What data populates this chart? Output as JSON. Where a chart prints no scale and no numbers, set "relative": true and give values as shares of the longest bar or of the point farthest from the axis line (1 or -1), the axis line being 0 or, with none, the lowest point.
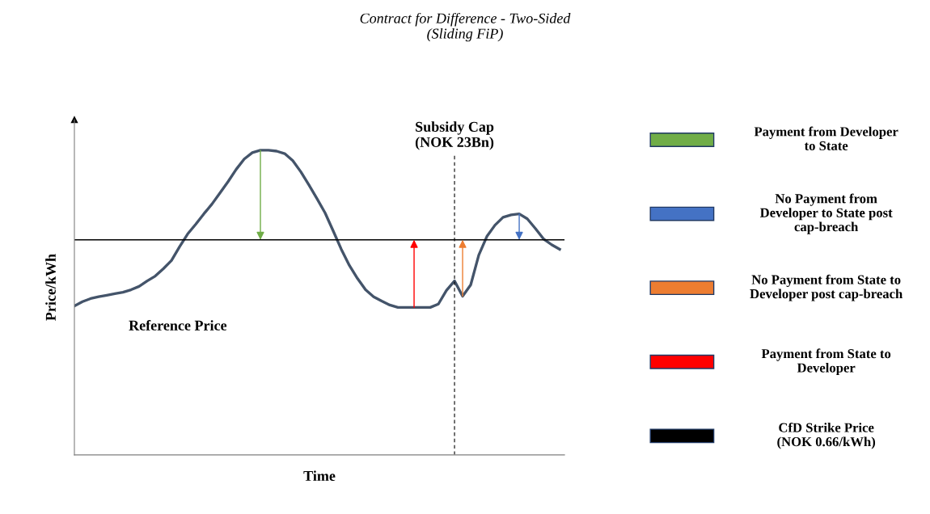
{
  "chart_data": [
    {
      "type": "line",
      "title": "Contract for Difference - Two-Sided\n(Sliding FiP)",
      "xlabel": "Time",
      "ylabel": "Price/kWh",
      "relative": true,
      "tick_labels": false,
      "categories": [
        null,
        null,
        null,
        null,
        null,
        null,
        null,
        null,
        null,
        null,
        null,
        null,
        null,
        null,
        null,
        null,
        null,
        null,
        null,
        null,
        null,
        null,
        null,
        null,
        null,
        null,
        null,
        null,
        null,
        null,
        null,
        null,
        null,
        null,
        null,
        null,
        null,
        null,
        null,
        null,
        null,
        null,
        null,
        null,
        null,
        null,
        null,
        null,
        null,
        null,
        null,
        null,
        null,
        null,
        null,
        null,
        null,
        null,
        null,
        null,
        null
      ],
      "series": [
        {
          "name": "Reference Price",
          "color": "#44546a",
          "values": [
            0.489,
            0.503,
            0.513,
            0.519,
            0.524,
            0.529,
            0.534,
            0.542,
            0.553,
            0.571,
            0.587,
            0.611,
            0.638,
            0.683,
            0.725,
            0.757,
            0.791,
            0.823,
            0.86,
            0.897,
            0.937,
            0.971,
            0.992,
            1,
            1,
            0.997,
            0.989,
            0.966,
            0.929,
            0.886,
            0.841,
            0.794,
            0.735,
            0.675,
            0.622,
            0.579,
            0.542,
            0.519,
            0.505,
            0.492,
            0.484,
            0.484,
            0.484,
            0.484,
            0.484,
            0.495,
            0.54,
            0.571,
            0.521,
            0.558,
            0.656,
            0.717,
            0.754,
            0.78,
            0.788,
            0.791,
            0.775,
            0.743,
            0.709,
            0.69,
            0.675
          ]
        }
      ],
      "ref_lines": [
        {
          "axis": "y",
          "value": 0.706,
          "color": "#000000",
          "line_style": "solid"
        }
      ],
      "annotations": [
        "Subsidy Cap\n(NOK 23Bn)"
      ]
    },
    {
      "type": "other",
      "categories": [
        "Payment from Developer\nto State",
        "No Payment from\nDeveloper to State post\ncap-breach",
        "No Payment from State to\nDeveloper post cap-breach",
        "Payment from State to\nDeveloper",
        "CfD Strike Price\n(NOK 0.66/kWh)"
      ],
      "colors": [
        "#70ad47",
        "#4472c4",
        "#ed7d31",
        "#ff0000",
        "#000000"
      ]
    }
  ]
}
